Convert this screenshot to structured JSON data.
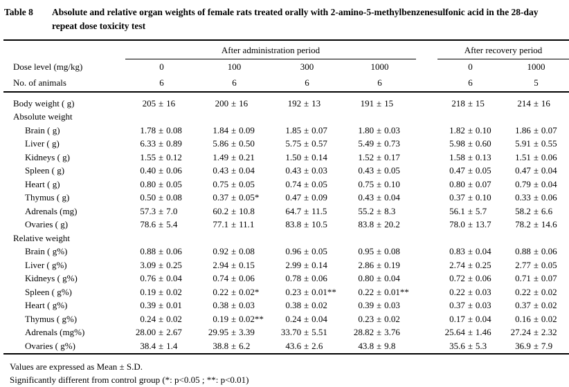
{
  "page": {
    "bg_color": "#ffffff",
    "text_color": "#000000"
  },
  "title": {
    "table_number": "Table 8",
    "line1": "Absolute and relative organ weights of female rats treated orally with 2-amino-5-methylbenzenesulfonic acid",
    "line2": "in the 28-day repeat dose toxicity test",
    "full_text": "Absolute and relative organ weights of female rats treated orally with 2-amino-5-methylbenzenesulfonic acid in the 28-day repeat dose toxicity test"
  },
  "table": {
    "column_groups": [
      {
        "label": "After administration period",
        "span": 4
      },
      {
        "label": "After recovery period",
        "span": 2
      }
    ],
    "header_rows": [
      {
        "label": "Dose level (mg/kg)",
        "indent": 0,
        "values": [
          "0",
          "100",
          "300",
          "1000",
          "0",
          "1000"
        ]
      },
      {
        "label": "No. of animals",
        "indent": 0,
        "values": [
          "6",
          "6",
          "6",
          "6",
          "6",
          "5"
        ]
      }
    ],
    "body_rows": [
      {
        "label": "Body weight ( g)",
        "indent": 0,
        "values": [
          "205 ± 16",
          "200 ± 16",
          "192 ± 13",
          "191 ± 15",
          "218 ± 15",
          "214 ± 16"
        ]
      },
      {
        "label": "Absolute weight",
        "indent": 0,
        "section": true,
        "values": [
          "",
          "",
          "",
          "",
          "",
          ""
        ]
      },
      {
        "label": "Brain ( g)",
        "indent": 1,
        "values": [
          "1.78 ± 0.08",
          "1.84 ± 0.09",
          "1.85 ± 0.07",
          "1.80 ± 0.03",
          "1.82 ± 0.10",
          "1.86 ± 0.07"
        ]
      },
      {
        "label": "Liver ( g)",
        "indent": 1,
        "values": [
          "6.33 ± 0.89",
          "5.86 ± 0.50",
          "5.75 ± 0.57",
          "5.49 ± 0.73",
          "5.98 ± 0.60",
          "5.91 ± 0.55"
        ]
      },
      {
        "label": "Kidneys ( g)",
        "indent": 1,
        "values": [
          "1.55 ± 0.12",
          "1.49 ± 0.21",
          "1.50 ± 0.14",
          "1.52 ± 0.17",
          "1.58 ± 0.13",
          "1.51 ± 0.06"
        ]
      },
      {
        "label": "Spleen ( g)",
        "indent": 1,
        "values": [
          "0.40 ± 0.06",
          "0.43 ± 0.04",
          "0.43 ± 0.03",
          "0.43 ± 0.05",
          "0.47 ± 0.05",
          "0.47 ± 0.04"
        ]
      },
      {
        "label": "Heart ( g)",
        "indent": 1,
        "values": [
          "0.80 ± 0.05",
          "0.75 ± 0.05",
          "0.74 ± 0.05",
          "0.75 ± 0.10",
          "0.80 ± 0.07",
          "0.79 ± 0.04"
        ]
      },
      {
        "label": "Thymus ( g)",
        "indent": 1,
        "values": [
          "0.50 ± 0.08",
          "0.37 ± 0.05*",
          "0.47 ± 0.09",
          "0.43 ± 0.04",
          "0.37 ± 0.10",
          "0.33 ± 0.06"
        ]
      },
      {
        "label": "Adrenals (mg)",
        "indent": 1,
        "values": [
          "57.3 ± 7.0",
          "60.2 ± 10.8",
          "64.7 ± 11.5",
          "55.2 ± 8.3",
          "56.1 ± 5.7",
          "58.2 ± 6.6"
        ]
      },
      {
        "label": "Ovaries ( g)",
        "indent": 1,
        "values": [
          "78.6 ± 5.4",
          "77.1 ± 11.1",
          "83.8 ± 10.5",
          "83.8 ± 20.2",
          "78.0 ± 13.7",
          "78.2 ± 14.6"
        ]
      },
      {
        "label": "Relative weight",
        "indent": 0,
        "section": true,
        "values": [
          "",
          "",
          "",
          "",
          "",
          ""
        ]
      },
      {
        "label": "Brain ( g%)",
        "indent": 1,
        "values": [
          "0.88 ± 0.06",
          "0.92 ± 0.08",
          "0.96 ± 0.05",
          "0.95 ± 0.08",
          "0.83 ± 0.04",
          "0.88 ± 0.06"
        ]
      },
      {
        "label": "Liver ( g%)",
        "indent": 1,
        "values": [
          "3.09 ± 0.25",
          "2.94 ± 0.15",
          "2.99 ± 0.14",
          "2.86 ± 0.19",
          "2.74 ± 0.25",
          "2.77 ± 0.05"
        ]
      },
      {
        "label": "Kidneys ( g%)",
        "indent": 1,
        "values": [
          "0.76 ± 0.04",
          "0.74 ± 0.06",
          "0.78 ± 0.06",
          "0.80 ± 0.04",
          "0.72 ± 0.06",
          "0.71 ± 0.07"
        ]
      },
      {
        "label": "Spleen ( g%)",
        "indent": 1,
        "values": [
          "0.19 ± 0.02",
          "0.22 ± 0.02*",
          "0.23 ± 0.01**",
          "0.22 ± 0.01**",
          "0.22 ± 0.03",
          "0.22 ± 0.02"
        ]
      },
      {
        "label": "Heart ( g%)",
        "indent": 1,
        "values": [
          "0.39 ± 0.01",
          "0.38 ± 0.03",
          "0.38 ± 0.02",
          "0.39 ± 0.03",
          "0.37 ± 0.03",
          "0.37 ± 0.02"
        ]
      },
      {
        "label": "Thymus ( g%)",
        "indent": 1,
        "values": [
          "0.24 ± 0.02",
          "0.19 ± 0.02**",
          "0.24 ± 0.04",
          "0.23 ± 0.02",
          "0.17 ± 0.04",
          "0.16 ± 0.02"
        ]
      },
      {
        "label": "Adrenals (mg%)",
        "indent": 1,
        "values": [
          "28.00 ± 2.67",
          "29.95 ± 3.39",
          "33.70 ± 5.51",
          "28.82 ± 3.76",
          "25.64 ± 1.46",
          "27.24 ± 2.32"
        ]
      },
      {
        "label": "Ovaries ( g%)",
        "indent": 1,
        "values": [
          "38.4 ± 1.4",
          "38.8 ± 6.2",
          "43.6 ± 2.6",
          "43.8 ± 9.8",
          "35.6 ± 5.3",
          "36.9 ± 7.9"
        ]
      }
    ]
  },
  "footnotes": {
    "line1": "Values are expressed as Mean ± S.D.",
    "line2": "Significantly different from control group (*: p<0.05 ; **: p<0.01)"
  }
}
